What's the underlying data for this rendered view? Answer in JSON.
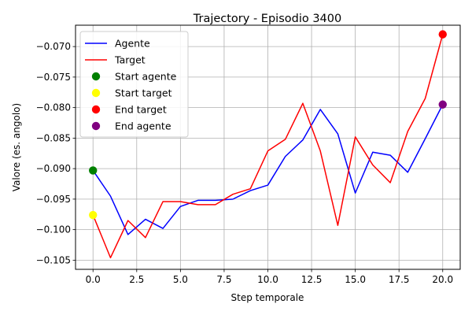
{
  "chart_data": {
    "type": "line",
    "title": "Trajectory - Episodio 3400",
    "xlabel": "Step temporale",
    "ylabel": "Valore (es. angolo)",
    "xlim": [
      -1.0,
      21.0
    ],
    "ylim": [
      -0.1065,
      -0.0665
    ],
    "xticks": [
      0,
      2.5,
      5,
      7.5,
      10,
      12.5,
      15,
      17.5,
      20
    ],
    "xtick_labels": [
      "0.0",
      "2.5",
      "5.0",
      "7.5",
      "10.0",
      "12.5",
      "15.0",
      "17.5",
      "20.0"
    ],
    "yticks": [
      -0.105,
      -0.1,
      -0.095,
      -0.09,
      -0.085,
      -0.08,
      -0.075,
      -0.07
    ],
    "ytick_labels": [
      "−0.105",
      "−0.100",
      "−0.095",
      "−0.090",
      "−0.085",
      "−0.080",
      "−0.075",
      "−0.070"
    ],
    "grid": true,
    "legend_position": "top-left",
    "x": [
      0,
      1,
      2,
      3,
      4,
      5,
      6,
      7,
      8,
      9,
      10,
      11,
      12,
      13,
      14,
      15,
      16,
      17,
      18,
      19,
      20
    ],
    "series": [
      {
        "name": "Agente",
        "color": "#0000ff",
        "values": [
          -0.0903,
          -0.0945,
          -0.1008,
          -0.0983,
          -0.0998,
          -0.0962,
          -0.0952,
          -0.0952,
          -0.095,
          -0.0936,
          -0.0927,
          -0.088,
          -0.0853,
          -0.0803,
          -0.0843,
          -0.094,
          -0.0873,
          -0.0878,
          -0.0906,
          -0.0851,
          -0.0795
        ]
      },
      {
        "name": "Target",
        "color": "#ff0000",
        "values": [
          -0.0976,
          -0.1046,
          -0.0985,
          -0.1013,
          -0.0954,
          -0.0954,
          -0.0959,
          -0.0959,
          -0.0942,
          -0.0933,
          -0.0871,
          -0.0852,
          -0.0793,
          -0.0871,
          -0.0993,
          -0.0848,
          -0.0894,
          -0.0923,
          -0.0839,
          -0.0785,
          -0.068
        ]
      }
    ],
    "markers": [
      {
        "name": "Start agente",
        "color": "#008000",
        "x": 0,
        "y": -0.0903
      },
      {
        "name": "Start target",
        "color": "#ffff00",
        "x": 0,
        "y": -0.0976
      },
      {
        "name": "End target",
        "color": "#ff0000",
        "x": 20,
        "y": -0.068
      },
      {
        "name": "End agente",
        "color": "#800080",
        "x": 20,
        "y": -0.0795
      }
    ],
    "legend_entries": [
      "Agente",
      "Target",
      "Start agente",
      "Start target",
      "End target",
      "End agente"
    ]
  }
}
